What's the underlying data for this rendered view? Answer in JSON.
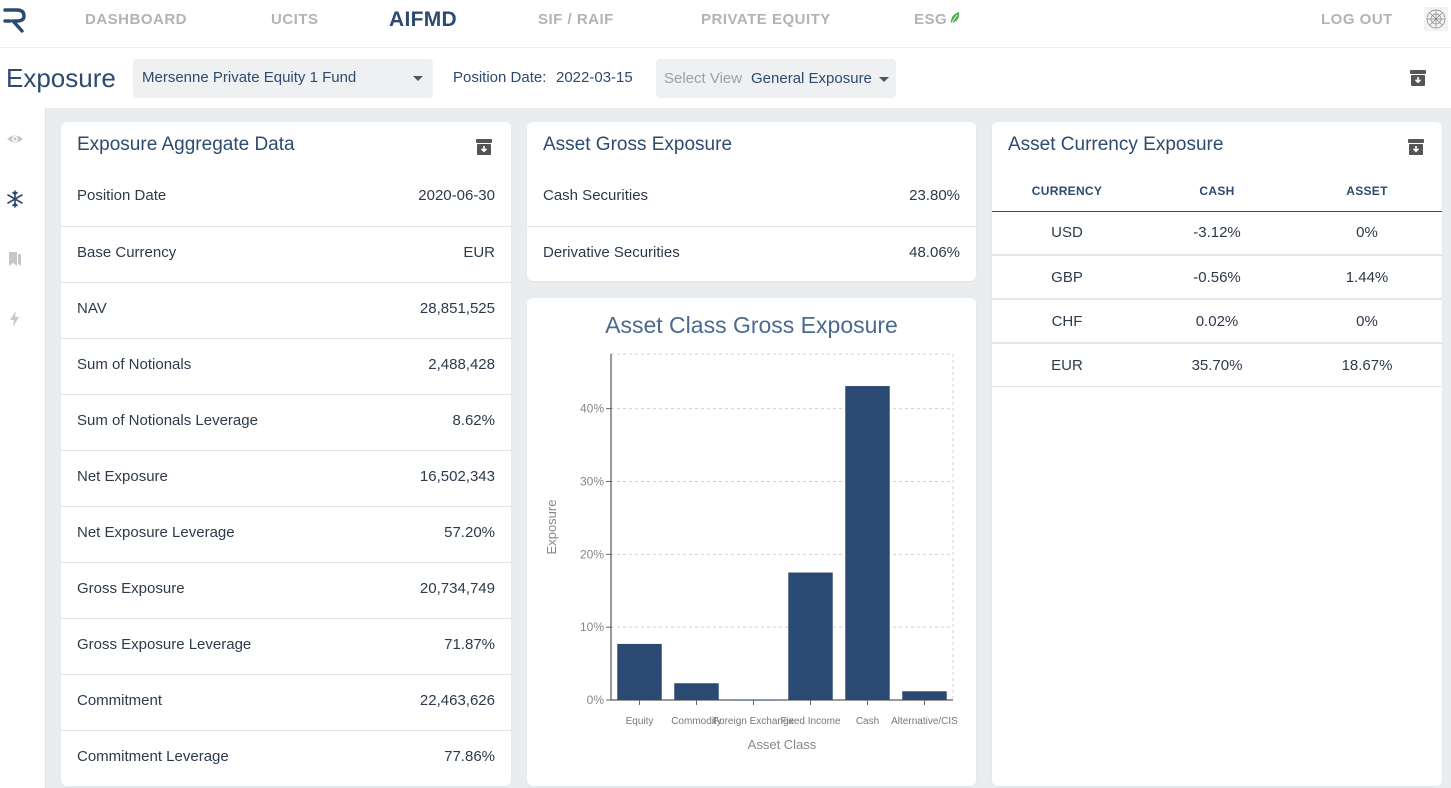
{
  "nav": {
    "items": [
      {
        "label": "DASHBOARD",
        "active": false
      },
      {
        "label": "UCITS",
        "active": false
      },
      {
        "label": "AIFMD",
        "active": true
      },
      {
        "label": "SIF / RAIF",
        "active": false
      },
      {
        "label": "PRIVATE EQUITY",
        "active": false
      },
      {
        "label": "ESG",
        "active": false
      }
    ],
    "logout_label": "LOG OUT",
    "icons": {
      "logo": "logo-icon",
      "esg": "leaf-icon",
      "avatar": "avatar-icon"
    }
  },
  "header": {
    "title": "Exposure",
    "fund_select_value": "Mersenne Private Equity 1 Fund",
    "position_date_label": "Position Date:",
    "position_date_value": "2022-03-15",
    "view_select_label": "Select View",
    "view_select_value": "General Exposure"
  },
  "sidebar": {
    "icons": [
      "eye-icon",
      "snowflake-icon",
      "bookmark-icon",
      "bolt-icon"
    ]
  },
  "aggregate": {
    "title": "Exposure Aggregate Data",
    "rows": [
      {
        "label": "Position Date",
        "value": "2020-06-30"
      },
      {
        "label": "Base Currency",
        "value": "EUR"
      },
      {
        "label": "NAV",
        "value": "28,851,525"
      },
      {
        "label": "Sum of Notionals",
        "value": "2,488,428"
      },
      {
        "label": "Sum of Notionals Leverage",
        "value": "8.62%"
      },
      {
        "label": "Net Exposure",
        "value": "16,502,343"
      },
      {
        "label": "Net Exposure Leverage",
        "value": "57.20%"
      },
      {
        "label": "Gross Exposure",
        "value": "20,734,749"
      },
      {
        "label": "Gross Exposure Leverage",
        "value": "71.87%"
      },
      {
        "label": "Commitment",
        "value": "22,463,626"
      },
      {
        "label": "Commitment Leverage",
        "value": "77.86%"
      }
    ]
  },
  "gross": {
    "title": "Asset Gross Exposure",
    "rows": [
      {
        "label": "Cash Securities",
        "value": "23.80%"
      },
      {
        "label": "Derivative Securities",
        "value": "48.06%"
      }
    ]
  },
  "currency": {
    "title": "Asset Currency Exposure",
    "headers": [
      "CURRENCY",
      "CASH",
      "ASSET"
    ],
    "rows": [
      {
        "currency": "USD",
        "cash": "-3.12%",
        "asset": "0%"
      },
      {
        "currency": "GBP",
        "cash": "-0.56%",
        "asset": "1.44%"
      },
      {
        "currency": "CHF",
        "cash": "0.02%",
        "asset": "0%"
      },
      {
        "currency": "EUR",
        "cash": "35.70%",
        "asset": "18.67%"
      }
    ]
  },
  "colors": {
    "accent": "#2d4a70",
    "bar": "#2a4a74",
    "leaf": "#4caf50"
  },
  "chart_data": {
    "type": "bar",
    "title": "Asset Class Gross Exposure",
    "xlabel": "Asset Class",
    "ylabel": "Exposure",
    "categories": [
      "Equity",
      "Commodity",
      "Foreign Exchange",
      "Fixed Income",
      "Cash",
      "Alternative/CIS"
    ],
    "values": [
      7.7,
      2.3,
      0,
      17.5,
      43.1,
      1.2
    ],
    "yticks": [
      "0%",
      "10%",
      "20%",
      "30%",
      "40%"
    ],
    "ylim": [
      0,
      47.5
    ],
    "grid": true
  }
}
